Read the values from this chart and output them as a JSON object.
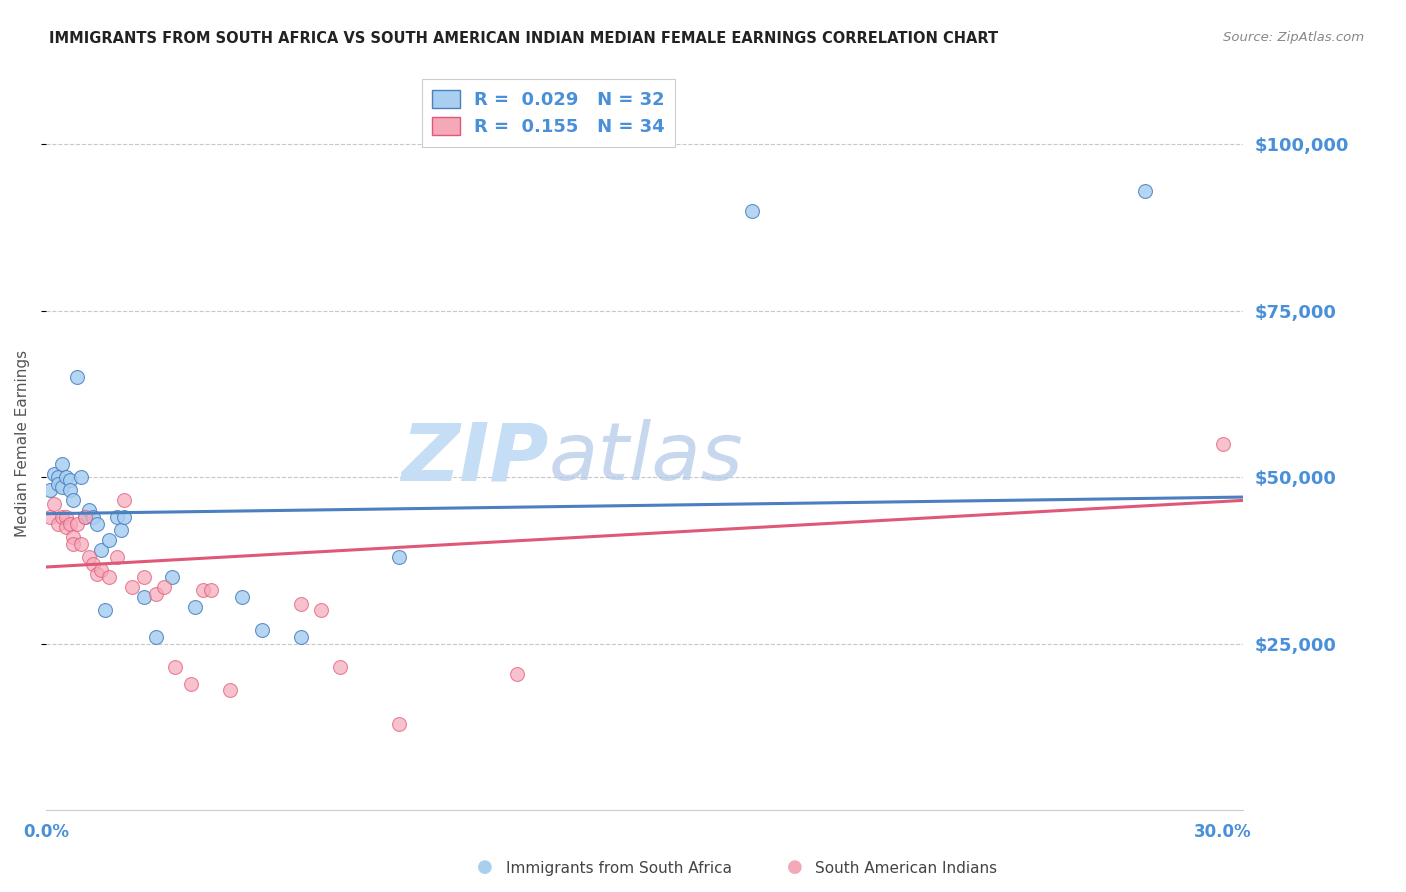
{
  "title": "IMMIGRANTS FROM SOUTH AFRICA VS SOUTH AMERICAN INDIAN MEDIAN FEMALE EARNINGS CORRELATION CHART",
  "source": "Source: ZipAtlas.com",
  "ylabel": "Median Female Earnings",
  "ytick_labels": [
    "$25,000",
    "$50,000",
    "$75,000",
    "$100,000"
  ],
  "ytick_values": [
    25000,
    50000,
    75000,
    100000
  ],
  "ymin": 0,
  "ymax": 110000,
  "xmin": 0.0,
  "xmax": 0.305,
  "legend1_label": "Immigrants from South Africa",
  "legend2_label": "South American Indians",
  "R1": 0.029,
  "N1": 32,
  "R2": 0.155,
  "N2": 34,
  "color_blue": "#a8cff0",
  "color_pink": "#f5a8b8",
  "color_blue_line": "#4a7fc0",
  "color_pink_line": "#e05878",
  "color_text_blue": "#4a90d9",
  "watermark_zip": "ZIP",
  "watermark_atlas": "atlas",
  "blue_scatter_x": [
    0.001,
    0.002,
    0.003,
    0.003,
    0.004,
    0.004,
    0.005,
    0.006,
    0.006,
    0.007,
    0.008,
    0.009,
    0.01,
    0.011,
    0.012,
    0.013,
    0.014,
    0.015,
    0.016,
    0.018,
    0.019,
    0.02,
    0.025,
    0.028,
    0.032,
    0.038,
    0.05,
    0.055,
    0.065,
    0.09,
    0.18,
    0.28
  ],
  "blue_scatter_y": [
    48000,
    50500,
    50000,
    49000,
    52000,
    48500,
    50000,
    49500,
    48000,
    46500,
    65000,
    50000,
    44000,
    45000,
    44000,
    43000,
    39000,
    30000,
    40500,
    44000,
    42000,
    44000,
    32000,
    26000,
    35000,
    30500,
    32000,
    27000,
    26000,
    38000,
    90000,
    93000
  ],
  "pink_scatter_x": [
    0.001,
    0.002,
    0.003,
    0.004,
    0.005,
    0.005,
    0.006,
    0.007,
    0.007,
    0.008,
    0.009,
    0.01,
    0.011,
    0.012,
    0.013,
    0.014,
    0.016,
    0.018,
    0.02,
    0.022,
    0.025,
    0.028,
    0.03,
    0.033,
    0.037,
    0.04,
    0.042,
    0.047,
    0.065,
    0.07,
    0.075,
    0.09,
    0.12,
    0.3
  ],
  "pink_scatter_y": [
    44000,
    46000,
    43000,
    44000,
    44000,
    42500,
    43000,
    41000,
    40000,
    43000,
    40000,
    44000,
    38000,
    37000,
    35500,
    36000,
    35000,
    38000,
    46500,
    33500,
    35000,
    32500,
    33500,
    21500,
    19000,
    33000,
    33000,
    18000,
    31000,
    30000,
    21500,
    13000,
    20500,
    55000
  ],
  "blue_trend_x": [
    0.0,
    0.305
  ],
  "blue_trend_y": [
    44500,
    47000
  ],
  "pink_trend_x": [
    0.0,
    0.305
  ],
  "pink_trend_y": [
    36500,
    46500
  ],
  "grid_color": "#c8c8c8",
  "title_color": "#222222",
  "marker_size": 100
}
